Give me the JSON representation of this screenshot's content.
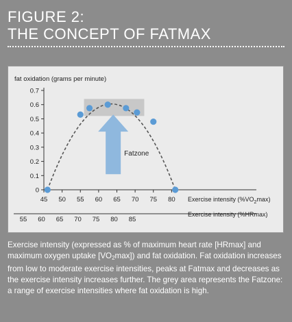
{
  "figure": {
    "label": "FIGURE 2:",
    "title": "THE CONCEPT OF FATMAX"
  },
  "colors": {
    "background": "#8c8c8c",
    "panel": "#ebebeb",
    "point": "#5b9bd5",
    "curve": "#555555",
    "fatzone": "#c8c8c8",
    "arrow": "#8fb8de"
  },
  "chart_data": {
    "type": "scatter",
    "ylabel": "fat oxidation (grams per minute)",
    "xlabel": "Exercise intensity (%VO",
    "xlabel_sub": "2",
    "xlabel_end": "max)",
    "x2label": "Exercise intensity (%HRmax)",
    "xlim": [
      45,
      85
    ],
    "ylim": [
      0,
      0.7
    ],
    "xticks": [
      "45",
      "50",
      "55",
      "60",
      "65",
      "70",
      "75",
      "80"
    ],
    "x2ticks": [
      "55",
      "60",
      "65",
      "70",
      "75",
      "80",
      "85"
    ],
    "yticks": [
      "0",
      "0.1",
      "0.2",
      "0.3",
      "0.4",
      "0.5",
      "0.6",
      "0.7"
    ],
    "points": [
      {
        "x": 46,
        "y": 0.0
      },
      {
        "x": 55,
        "y": 0.53
      },
      {
        "x": 57.5,
        "y": 0.575
      },
      {
        "x": 62.5,
        "y": 0.6
      },
      {
        "x": 67.5,
        "y": 0.575
      },
      {
        "x": 70.5,
        "y": 0.545
      },
      {
        "x": 75,
        "y": 0.48
      },
      {
        "x": 81,
        "y": 0.0
      }
    ],
    "fatzone": {
      "label": "Fatzone",
      "x_range": [
        56,
        72.5
      ],
      "y_range": [
        0.52,
        0.64
      ]
    },
    "grid": false
  },
  "caption": {
    "part1": "Exercise intensity (expressed as % of maximum heart rate [HRmax] and maximum oxygen uptake [VO",
    "sub": "2",
    "part2": "max]) and fat oxidation. Fat oxidation increases from low to moderate exercise intensities, peaks at Fatmax and decreases as the exercise intensity increases further. The grey area represents the Fatzone: a range of exercise intensities where fat oxidation is high."
  }
}
